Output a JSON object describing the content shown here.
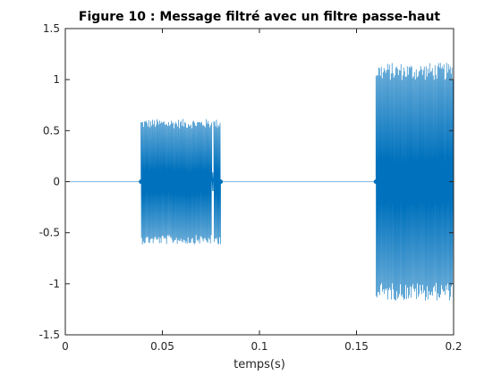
{
  "chart_data": {
    "type": "line",
    "title": "Figure 10 : Message filtré avec un filtre passe-haut",
    "xlabel": "temps(s)",
    "ylabel": "",
    "xlim": [
      0,
      0.2
    ],
    "ylim": [
      -1.5,
      1.5
    ],
    "xticks": [
      0,
      0.05,
      0.1,
      0.15,
      0.2
    ],
    "xtick_labels": [
      "0",
      "0.05",
      "0.1",
      "0.15",
      "0.2"
    ],
    "yticks": [
      -1.5,
      -1,
      -0.5,
      0,
      0.5,
      1,
      1.5
    ],
    "ytick_labels": [
      "-1.5",
      "-1",
      "-0.5",
      "0",
      "0.5",
      "1",
      "1.5"
    ],
    "grid": false,
    "series_color": "#0072bd",
    "segments": [
      {
        "x_start": 0,
        "x_end": 0.039,
        "amplitude": 0
      },
      {
        "x_start": 0.039,
        "x_end": 0.0755,
        "amplitude": 0.58
      },
      {
        "x_start": 0.0755,
        "x_end": 0.0765,
        "amplitude": 0.1
      },
      {
        "x_start": 0.0765,
        "x_end": 0.08,
        "amplitude": 0.58
      },
      {
        "x_start": 0.08,
        "x_end": 0.16,
        "amplitude": 0
      },
      {
        "x_start": 0.16,
        "x_end": 0.2,
        "amplitude": 1.1
      }
    ],
    "markers": [
      {
        "x": 0.039,
        "y": 0
      },
      {
        "x": 0.078,
        "y": 0
      },
      {
        "x": 0.08,
        "y": 0
      },
      {
        "x": 0.16,
        "y": 0
      }
    ]
  }
}
